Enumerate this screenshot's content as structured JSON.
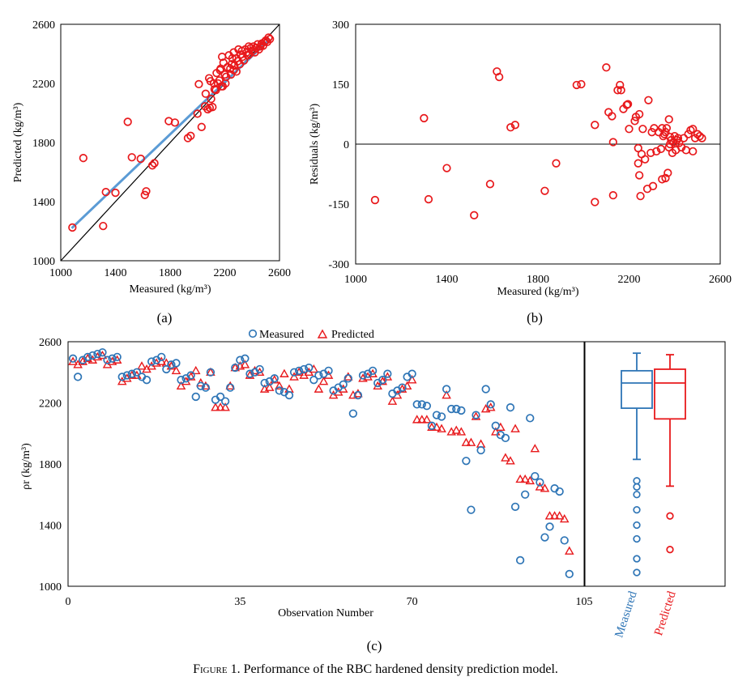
{
  "figure": {
    "caption_label": "Figure 1.",
    "caption_text": " Performance of the RBC hardened density prediction model.",
    "panel_a_label": "(a)",
    "panel_b_label": "(b)",
    "panel_c_label": "(c)"
  },
  "chart_data": [
    {
      "id": "a",
      "type": "scatter",
      "title": "",
      "xlabel": "Measured (kg/m³)",
      "ylabel": "Predicted (kg/m³)",
      "xlim": [
        1000,
        2600
      ],
      "ylim": [
        1000,
        2600
      ],
      "xticks": [
        "1000",
        "1400",
        "1800",
        "2200",
        "2600"
      ],
      "yticks": [
        "1000",
        "1400",
        "1800",
        "2200",
        "2600"
      ],
      "grid": false,
      "colors": {
        "points": "#e8191c",
        "fit": "#5b9bd5",
        "identity": "#000000"
      },
      "identity_line": [
        [
          1000,
          1000
        ],
        [
          2600,
          2600
        ]
      ],
      "fit_line": [
        [
          1080,
          1220
        ],
        [
          2530,
          2500
        ]
      ],
      "points": [
        [
          1085,
          1225
        ],
        [
          1165,
          1695
        ],
        [
          1310,
          1235
        ],
        [
          1330,
          1465
        ],
        [
          1400,
          1460
        ],
        [
          1490,
          1940
        ],
        [
          1520,
          1700
        ],
        [
          1585,
          1690
        ],
        [
          1615,
          1445
        ],
        [
          1625,
          1470
        ],
        [
          1670,
          1645
        ],
        [
          1685,
          1660
        ],
        [
          1790,
          1945
        ],
        [
          1835,
          1935
        ],
        [
          1930,
          1830
        ],
        [
          1950,
          1845
        ],
        [
          2000,
          1995
        ],
        [
          2010,
          2195
        ],
        [
          2030,
          1905
        ],
        [
          2055,
          2045
        ],
        [
          2060,
          2130
        ],
        [
          2075,
          2025
        ],
        [
          2085,
          2235
        ],
        [
          2090,
          2035
        ],
        [
          2100,
          2095
        ],
        [
          2110,
          2040
        ],
        [
          2125,
          2160
        ],
        [
          2135,
          2155
        ],
        [
          2140,
          2270
        ],
        [
          2150,
          2200
        ],
        [
          2160,
          2220
        ],
        [
          2165,
          2290
        ],
        [
          2170,
          2300
        ],
        [
          2180,
          2380
        ],
        [
          2190,
          2340
        ],
        [
          2200,
          2260
        ],
        [
          2210,
          2245
        ],
        [
          2220,
          2310
        ],
        [
          2230,
          2390
        ],
        [
          2240,
          2300
        ],
        [
          2250,
          2330
        ],
        [
          2255,
          2370
        ],
        [
          2265,
          2410
        ],
        [
          2270,
          2320
        ],
        [
          2285,
          2370
        ],
        [
          2295,
          2350
        ],
        [
          2300,
          2430
        ],
        [
          2310,
          2330
        ],
        [
          2315,
          2395
        ],
        [
          2325,
          2420
        ],
        [
          2330,
          2380
        ],
        [
          2340,
          2355
        ],
        [
          2350,
          2430
        ],
        [
          2360,
          2410
        ],
        [
          2370,
          2390
        ],
        [
          2375,
          2450
        ],
        [
          2380,
          2400
        ],
        [
          2390,
          2440
        ],
        [
          2400,
          2420
        ],
        [
          2410,
          2450
        ],
        [
          2420,
          2410
        ],
        [
          2430,
          2440
        ],
        [
          2440,
          2465
        ],
        [
          2450,
          2430
        ],
        [
          2460,
          2450
        ],
        [
          2470,
          2470
        ],
        [
          2480,
          2455
        ],
        [
          2490,
          2480
        ],
        [
          2500,
          2490
        ],
        [
          2510,
          2480
        ],
        [
          2520,
          2510
        ],
        [
          2530,
          2500
        ],
        [
          2175,
          2180
        ],
        [
          2120,
          2200
        ],
        [
          2095,
          2215
        ],
        [
          2285,
          2280
        ],
        [
          2245,
          2260
        ],
        [
          2265,
          2290
        ],
        [
          2185,
          2180
        ],
        [
          2205,
          2200
        ]
      ]
    },
    {
      "id": "b",
      "type": "scatter",
      "title": "",
      "xlabel": "Measured (kg/m³)",
      "ylabel": "Residuals (kg/m³)",
      "xlim": [
        1000,
        2600
      ],
      "ylim": [
        -300,
        300
      ],
      "xticks": [
        "1000",
        "1400",
        "1800",
        "2200",
        "2600"
      ],
      "yticks": [
        "300",
        "150",
        "0",
        "-150",
        "-300"
      ],
      "grid": false,
      "colors": {
        "points": "#e8191c",
        "zero_line": "#000000"
      },
      "points": [
        [
          1085,
          -140
        ],
        [
          1300,
          65
        ],
        [
          1320,
          -138
        ],
        [
          1400,
          -60
        ],
        [
          1520,
          -178
        ],
        [
          1590,
          -100
        ],
        [
          1620,
          182
        ],
        [
          1630,
          168
        ],
        [
          1680,
          42
        ],
        [
          1700,
          48
        ],
        [
          1830,
          -117
        ],
        [
          1880,
          -48
        ],
        [
          1970,
          148
        ],
        [
          1990,
          150
        ],
        [
          2050,
          48
        ],
        [
          2050,
          -145
        ],
        [
          2100,
          192
        ],
        [
          2110,
          80
        ],
        [
          2125,
          70
        ],
        [
          2130,
          5
        ],
        [
          2130,
          -128
        ],
        [
          2150,
          135
        ],
        [
          2160,
          148
        ],
        [
          2165,
          135
        ],
        [
          2175,
          88
        ],
        [
          2190,
          98
        ],
        [
          2195,
          100
        ],
        [
          2200,
          38
        ],
        [
          2225,
          58
        ],
        [
          2230,
          68
        ],
        [
          2240,
          -10
        ],
        [
          2240,
          -48
        ],
        [
          2245,
          -78
        ],
        [
          2245,
          75
        ],
        [
          2250,
          -130
        ],
        [
          2255,
          -25
        ],
        [
          2260,
          38
        ],
        [
          2270,
          -38
        ],
        [
          2280,
          -112
        ],
        [
          2285,
          110
        ],
        [
          2295,
          -22
        ],
        [
          2300,
          30
        ],
        [
          2305,
          -105
        ],
        [
          2310,
          40
        ],
        [
          2320,
          -18
        ],
        [
          2330,
          30
        ],
        [
          2340,
          -12
        ],
        [
          2345,
          40
        ],
        [
          2345,
          -88
        ],
        [
          2350,
          20
        ],
        [
          2355,
          25
        ],
        [
          2360,
          -85
        ],
        [
          2365,
          40
        ],
        [
          2370,
          -72
        ],
        [
          2375,
          62
        ],
        [
          2375,
          -8
        ],
        [
          2380,
          18
        ],
        [
          2385,
          10
        ],
        [
          2390,
          -22
        ],
        [
          2395,
          5
        ],
        [
          2400,
          20
        ],
        [
          2405,
          -15
        ],
        [
          2410,
          10
        ],
        [
          2415,
          15
        ],
        [
          2420,
          3
        ],
        [
          2430,
          -8
        ],
        [
          2440,
          15
        ],
        [
          2450,
          -15
        ],
        [
          2460,
          25
        ],
        [
          2470,
          35
        ],
        [
          2480,
          38
        ],
        [
          2480,
          -18
        ],
        [
          2490,
          15
        ],
        [
          2500,
          25
        ],
        [
          2510,
          20
        ],
        [
          2520,
          15
        ],
        [
          2360,
          30
        ],
        [
          2380,
          0
        ]
      ]
    },
    {
      "id": "c",
      "type": "scatter",
      "title": "",
      "xlabel": "Observation Number",
      "ylabel": "ρr (kg/m³)",
      "xlim": [
        0,
        105
      ],
      "ylim": [
        1000,
        2600
      ],
      "xticks": [
        "0",
        "35",
        "70",
        "105"
      ],
      "yticks": [
        "1000",
        "1400",
        "1800",
        "2200",
        "2600"
      ],
      "grid": false,
      "legend_position": "top",
      "colors": {
        "measured": "#2e75b6",
        "predicted": "#e8191c"
      },
      "series": [
        {
          "name": "Measured",
          "values": [
            2490,
            2370,
            2480,
            2500,
            2510,
            2520,
            2530,
            2480,
            2490,
            2500,
            2370,
            2380,
            2390,
            2400,
            2370,
            2350,
            2470,
            2480,
            2500,
            2420,
            2450,
            2460,
            2350,
            2360,
            2380,
            2240,
            2310,
            2300,
            2400,
            2220,
            2240,
            2210,
            2300,
            2430,
            2480,
            2490,
            2390,
            2400,
            2420,
            2330,
            2340,
            2360,
            2280,
            2270,
            2250,
            2400,
            2410,
            2420,
            2430,
            2350,
            2380,
            2390,
            2410,
            2280,
            2300,
            2320,
            2360,
            2130,
            2250,
            2380,
            2390,
            2410,
            2330,
            2350,
            2390,
            2260,
            2280,
            2300,
            2370,
            2390,
            2190,
            2190,
            2180,
            2050,
            2120,
            2110,
            2290,
            2160,
            2160,
            2150,
            1820,
            1500,
            2120,
            1890,
            2290,
            2190,
            2050,
            1990,
            1970,
            2170,
            1520,
            1170,
            1600,
            2100,
            1720,
            1680,
            1320,
            1390,
            1640,
            1620,
            1300,
            1080
          ]
        },
        {
          "name": "Predicted",
          "values": [
            2470,
            2450,
            2470,
            2490,
            2480,
            2500,
            2510,
            2450,
            2470,
            2480,
            2340,
            2360,
            2380,
            2380,
            2440,
            2420,
            2440,
            2460,
            2470,
            2460,
            2440,
            2410,
            2310,
            2340,
            2370,
            2410,
            2330,
            2310,
            2400,
            2170,
            2170,
            2170,
            2310,
            2430,
            2440,
            2450,
            2380,
            2410,
            2400,
            2290,
            2300,
            2350,
            2310,
            2390,
            2290,
            2370,
            2400,
            2380,
            2400,
            2420,
            2290,
            2340,
            2380,
            2250,
            2270,
            2290,
            2370,
            2250,
            2260,
            2360,
            2370,
            2390,
            2310,
            2340,
            2370,
            2210,
            2250,
            2290,
            2310,
            2350,
            2090,
            2090,
            2090,
            2040,
            2040,
            2030,
            2250,
            2010,
            2020,
            2010,
            1940,
            1940,
            2110,
            1930,
            2160,
            2170,
            2010,
            2040,
            1840,
            1820,
            2030,
            1700,
            1700,
            1690,
            1900,
            1650,
            1640,
            1460,
            1460,
            1460,
            1440,
            1230
          ]
        }
      ],
      "boxplot": {
        "ylim": [
          1000,
          2600
        ],
        "categories": [
          "Measured",
          "Predicted"
        ],
        "Measured": {
          "whisker_low": 1830,
          "q1": 2165,
          "median": 2330,
          "q3": 2410,
          "whisker_high": 2525,
          "outliers": [
            1690,
            1650,
            1600,
            1500,
            1400,
            1310,
            1180,
            1090
          ]
        },
        "Predicted": {
          "whisker_low": 1655,
          "q1": 2095,
          "median": 2330,
          "q3": 2420,
          "whisker_high": 2515,
          "outliers": [
            1460,
            1240
          ]
        }
      }
    }
  ]
}
